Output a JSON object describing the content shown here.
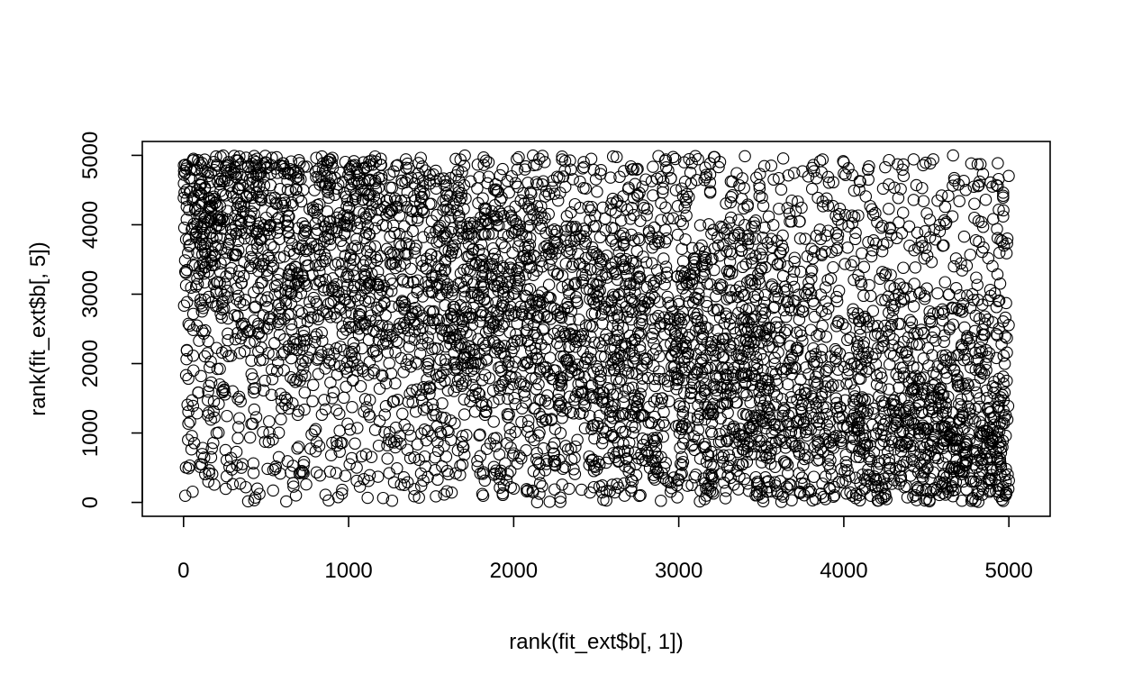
{
  "chart_data": {
    "type": "scatter",
    "title": "",
    "xlabel": "rank(fit_ext$b[, 1])",
    "ylabel": "rank(fit_ext$b[, 5])",
    "xlim": [
      -250,
      5250
    ],
    "ylim": [
      -200,
      5200
    ],
    "x_ticks": [
      0,
      1000,
      2000,
      3000,
      4000,
      5000
    ],
    "y_ticks": [
      0,
      1000,
      2000,
      3000,
      4000,
      5000
    ],
    "x_tick_labels": [
      "0",
      "1000",
      "2000",
      "3000",
      "4000",
      "5000"
    ],
    "y_tick_labels": [
      "0",
      "1000",
      "2000",
      "3000",
      "4000",
      "5000"
    ],
    "grid": false,
    "legend": "none",
    "marker": "open-circle",
    "point_color": "#000000",
    "n_points": 5000,
    "distribution": "dense cloud of ranks 1–5000 on both axes with weak negative association: points concentrate near the top-left (low x, high y) and bottom-right (high x, low y)",
    "sample_points": [
      [
        20,
        4850
      ],
      [
        60,
        4950
      ],
      [
        150,
        4700
      ],
      [
        300,
        4400
      ],
      [
        500,
        4100
      ],
      [
        80,
        3900
      ],
      [
        250,
        3500
      ],
      [
        700,
        3200
      ],
      [
        120,
        2800
      ],
      [
        400,
        2300
      ],
      [
        60,
        1900
      ],
      [
        900,
        1500
      ],
      [
        200,
        1000
      ],
      [
        350,
        500
      ],
      [
        150,
        300
      ],
      [
        1200,
        4700
      ],
      [
        1500,
        4300
      ],
      [
        1800,
        4000
      ],
      [
        2200,
        3700
      ],
      [
        2600,
        3300
      ],
      [
        3000,
        2900
      ],
      [
        3400,
        2500
      ],
      [
        3800,
        2100
      ],
      [
        4200,
        1700
      ],
      [
        4600,
        1300
      ],
      [
        4900,
        900
      ],
      [
        4950,
        400
      ],
      [
        4980,
        100
      ],
      [
        4800,
        300
      ],
      [
        4500,
        50
      ],
      [
        2500,
        1500
      ],
      [
        3500,
        800
      ],
      [
        1500,
        2500
      ],
      [
        2000,
        200
      ],
      [
        4000,
        4900
      ],
      [
        4900,
        4550
      ],
      [
        4970,
        3700
      ],
      [
        3100,
        3500
      ],
      [
        2800,
        600
      ],
      [
        1700,
        3100
      ]
    ]
  }
}
